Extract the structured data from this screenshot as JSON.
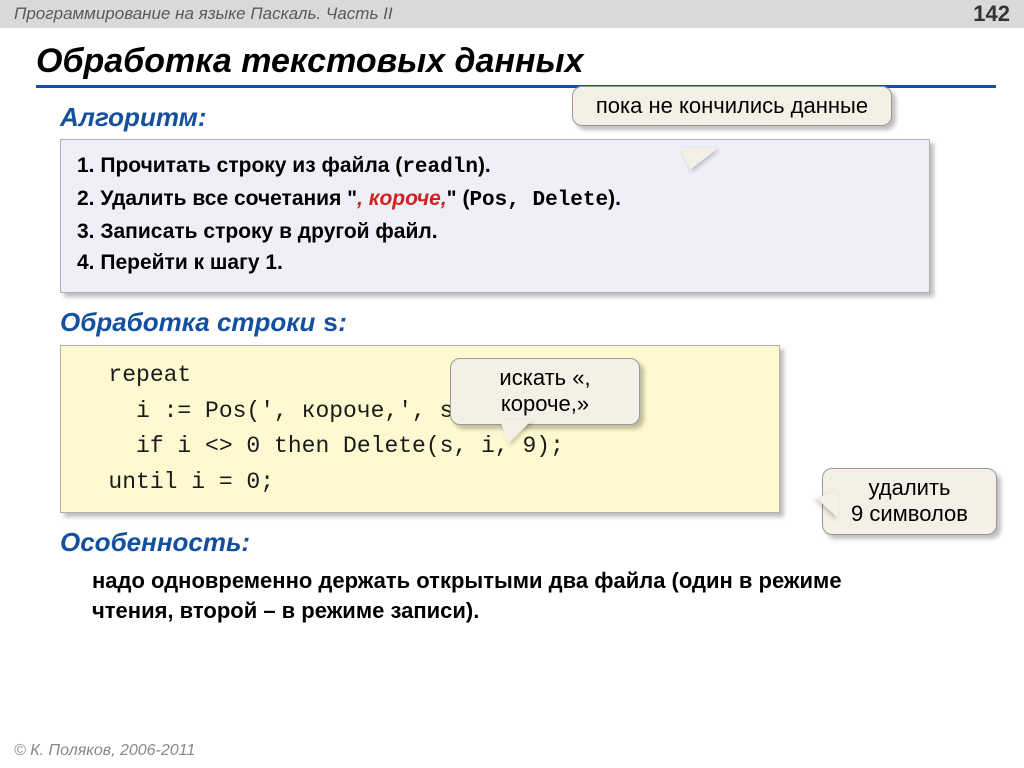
{
  "header": {
    "title": "Программирование на языке Паскаль. Часть II",
    "page": "142"
  },
  "main_title": "Обработка текстовых данных",
  "sections": {
    "algorithm_label": "Алгоритм:",
    "processing_label_prefix": "Обработка строки ",
    "processing_var": "s",
    "processing_label_suffix": ":",
    "feature_label": "Особенность:"
  },
  "algorithm": {
    "step1_a": "1. Прочитать строку из файла (",
    "step1_code": "readln",
    "step1_b": ").",
    "step2_a": "2. Удалить все сочетания \"",
    "step2_red": ", короче,",
    "step2_b": "\" (",
    "step2_code": "Pos, Delete",
    "step2_c": ").",
    "step3": "3. Записать строку в другой файл.",
    "step4": "4. Перейти к шагу 1."
  },
  "code": {
    "l1": "   repeat",
    "l2": "     i := Pos(', короче,', s);",
    "l3": "     if i <> 0 then Delete(s, i, 9);",
    "l4": "   until i = 0;"
  },
  "callouts": {
    "c1": "пока не кончились данные",
    "c2a": "искать «,",
    "c2b": "короче,»",
    "c3a": "удалить",
    "c3b": "9 символов"
  },
  "feature_text": "надо одновременно держать открытыми два файла (один в режиме чтения, второй – в режиме записи).",
  "footer": "© К. Поляков, 2006-2011",
  "colors": {
    "header_bg": "#d9d9d9",
    "title_underline": "#1450a0",
    "section_color": "#1450a0",
    "algo_bg": "#efeff8",
    "code_bg": "#fef9d0",
    "callout_bg": "#f5f0e6",
    "red": "#d02020"
  }
}
